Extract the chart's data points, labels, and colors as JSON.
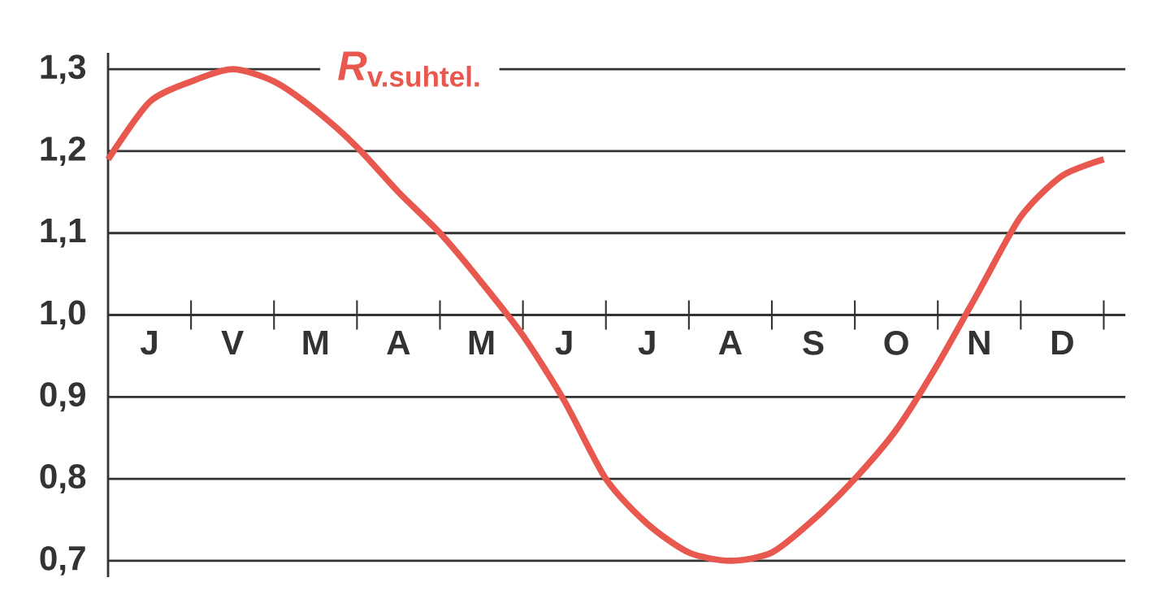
{
  "chart_data": {
    "type": "line",
    "categories": [
      null,
      "J",
      null,
      "V",
      null,
      "M",
      null,
      "A",
      null,
      "M",
      null,
      "J",
      null,
      "J",
      null,
      "A",
      null,
      "S",
      null,
      "O",
      null,
      "N",
      null,
      "D",
      null
    ],
    "ylim": [
      0.68,
      1.32
    ],
    "yticks": [
      {
        "value": 0.7,
        "label": "0,7"
      },
      {
        "value": 0.8,
        "label": "0,8"
      },
      {
        "value": 0.9,
        "label": "0,9"
      },
      {
        "value": 1.0,
        "label": "1,0"
      },
      {
        "value": 1.1,
        "label": "1,1"
      },
      {
        "value": 1.2,
        "label": "1,2"
      },
      {
        "value": 1.3,
        "label": "1,3"
      }
    ],
    "grid": "y",
    "line_style": "solid",
    "marker": "none",
    "series": [
      {
        "name": "*R*$_{v.suhtel.}$",
        "color": "#e8584f",
        "values": [
          1.19,
          1.26,
          1.285,
          1.3,
          1.285,
          1.25,
          1.205,
          1.15,
          1.1,
          1.04,
          0.975,
          0.895,
          0.8,
          0.745,
          0.71,
          0.7,
          0.71,
          0.75,
          0.8,
          0.86,
          0.94,
          1.03,
          1.12,
          1.17,
          1.19
        ]
      }
    ]
  }
}
